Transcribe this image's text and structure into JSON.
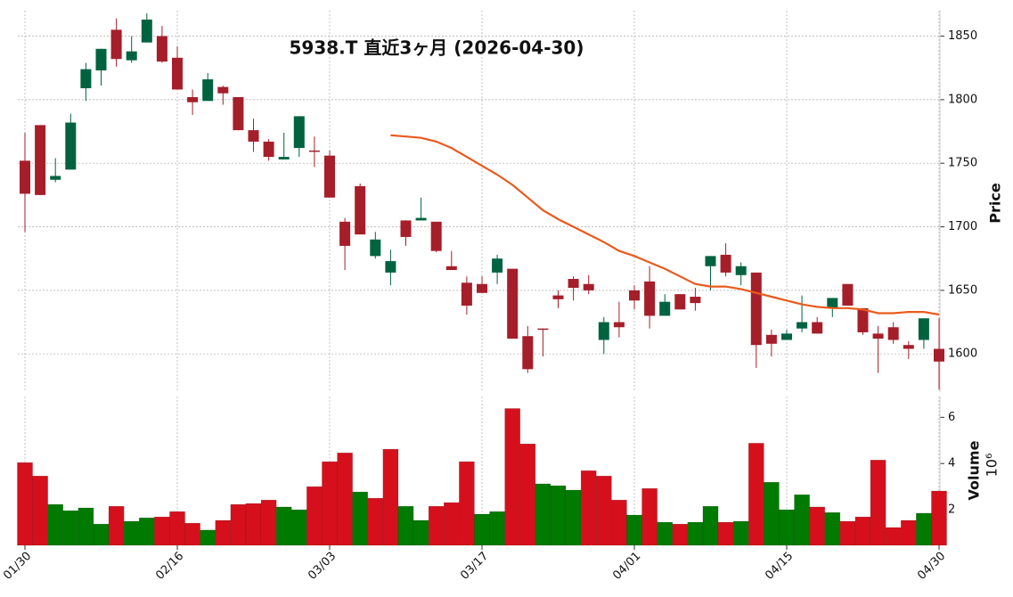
{
  "chart_data": {
    "type": "candlestick",
    "title": "5938.T  直近3ヶ月 (2026-04-30)",
    "categories": [
      "01/30",
      null,
      null,
      null,
      null,
      null,
      null,
      null,
      null,
      null,
      "02/16",
      null,
      null,
      null,
      null,
      null,
      null,
      null,
      null,
      null,
      "03/03",
      null,
      null,
      null,
      null,
      null,
      null,
      null,
      null,
      null,
      "03/17",
      null,
      null,
      null,
      null,
      null,
      null,
      null,
      null,
      null,
      "04/01",
      null,
      null,
      null,
      null,
      null,
      null,
      null,
      null,
      null,
      "04/15",
      null,
      null,
      null,
      null,
      null,
      null,
      null,
      null,
      null,
      "04/30"
    ],
    "open": [
      1752,
      1780,
      1737,
      1745,
      1809,
      1823,
      1855,
      1831,
      1845,
      1850,
      1833,
      1802,
      1799,
      1810,
      1802,
      1776,
      1767,
      1753,
      1762,
      1760,
      1756,
      1704,
      1732,
      1677,
      1664,
      1705,
      1705,
      1704,
      1669,
      1656,
      1655,
      1664,
      1667,
      1614,
      1620,
      1646,
      1659,
      1655,
      1611,
      1625,
      1650,
      1657,
      1630,
      1647,
      1645,
      1669,
      1678,
      1662,
      1664,
      1615,
      1611,
      1620,
      1625,
      1636,
      1655,
      1636,
      1616,
      1621,
      1607,
      1611,
      1604
    ],
    "high": [
      1774,
      1780,
      1754,
      1789,
      1829,
      1840,
      1864,
      1850,
      1868,
      1858,
      1842,
      1808,
      1821,
      1811,
      1802,
      1785,
      1769,
      1774,
      1787,
      1771,
      1760,
      1707,
      1734,
      1696,
      1682,
      1705,
      1723,
      1704,
      1681,
      1661,
      1661,
      1678,
      1667,
      1622,
      1620,
      1650,
      1661,
      1662,
      1629,
      1641,
      1654,
      1669,
      1647,
      1647,
      1652,
      1677,
      1687,
      1672,
      1664,
      1619,
      1619,
      1646,
      1629,
      1644,
      1655,
      1636,
      1622,
      1625,
      1610,
      1628,
      1628
    ],
    "low": [
      1696,
      1725,
      1735,
      1745,
      1799,
      1811,
      1826,
      1829,
      1845,
      1829,
      1808,
      1788,
      1799,
      1796,
      1776,
      1759,
      1752,
      1753,
      1755,
      1747,
      1723,
      1666,
      1694,
      1675,
      1654,
      1685,
      1705,
      1680,
      1666,
      1631,
      1648,
      1655,
      1612,
      1585,
      1598,
      1636,
      1642,
      1647,
      1600,
      1613,
      1635,
      1620,
      1630,
      1635,
      1634,
      1650,
      1661,
      1654,
      1589,
      1598,
      1611,
      1617,
      1616,
      1629,
      1638,
      1615,
      1585,
      1608,
      1596,
      1604,
      1572
    ],
    "close": [
      1726,
      1725,
      1740,
      1782,
      1824,
      1840,
      1832,
      1838,
      1863,
      1830,
      1808,
      1798,
      1816,
      1805,
      1776,
      1767,
      1755,
      1755,
      1787,
      1759,
      1723,
      1685,
      1694,
      1690,
      1673,
      1692,
      1707,
      1681,
      1666,
      1638,
      1648,
      1675,
      1612,
      1588,
      1619,
      1643,
      1652,
      1650,
      1625,
      1621,
      1642,
      1630,
      1641,
      1635,
      1640,
      1677,
      1664,
      1669,
      1607,
      1608,
      1616,
      1625,
      1616,
      1644,
      1638,
      1617,
      1612,
      1611,
      1604,
      1628,
      1594
    ],
    "up_color": "#006340",
    "down_color": "#a51e2a",
    "ma": {
      "color": "#ea5a1c",
      "values": [
        null,
        null,
        null,
        null,
        null,
        null,
        null,
        null,
        null,
        null,
        null,
        null,
        null,
        null,
        null,
        null,
        null,
        null,
        null,
        null,
        null,
        null,
        null,
        null,
        1772,
        1771,
        1770,
        1767,
        1762,
        1755,
        1748,
        1741,
        1733,
        1723,
        1713,
        1706,
        1700,
        1694,
        1688,
        1681,
        1677,
        1672,
        1667,
        1661,
        1655,
        1653,
        1653,
        1651,
        1648,
        1645,
        1642,
        1639,
        1637,
        1636,
        1636,
        1635,
        1632,
        1632,
        1633,
        1633,
        1631
      ]
    },
    "ylabel": "Price",
    "ylim": [
      1570,
      1870
    ],
    "yticks": [
      1600,
      1650,
      1700,
      1750,
      1800,
      1850
    ],
    "grid": true,
    "volume": {
      "ylabel": "Volume",
      "scale": "10⁶",
      "up_color": "#007a00",
      "down_color": "#d5101c",
      "ylim": [
        0.46,
        6.9
      ],
      "yticks": [
        2,
        4,
        6
      ],
      "values": [
        4.04,
        3.46,
        2.23,
        1.96,
        2.08,
        1.38,
        2.15,
        1.5,
        1.65,
        1.69,
        1.92,
        1.42,
        1.12,
        1.54,
        2.23,
        2.27,
        2.42,
        2.12,
        2.0,
        3.0,
        4.08,
        4.46,
        2.77,
        2.5,
        4.62,
        2.15,
        1.54,
        2.15,
        2.31,
        4.08,
        1.81,
        1.92,
        6.38,
        4.85,
        3.12,
        3.04,
        2.85,
        3.69,
        3.46,
        2.42,
        1.77,
        2.92,
        1.46,
        1.38,
        1.46,
        2.15,
        1.46,
        1.5,
        4.88,
        3.19,
        2.0,
        2.65,
        2.12,
        1.88,
        1.5,
        1.69,
        4.15,
        1.23,
        1.54,
        1.85,
        2.81
      ]
    }
  }
}
